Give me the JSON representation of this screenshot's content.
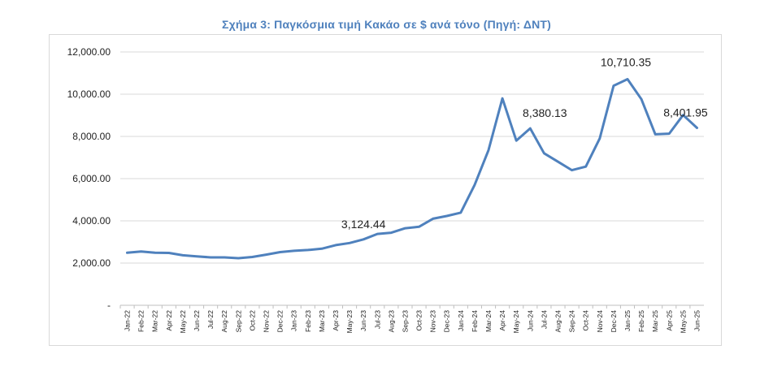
{
  "chart_data": {
    "type": "line",
    "title": "Σχήμα 3: Παγκόσμια τιμή Κακάο σε $ ανά τόνο (Πηγή: ΔΝΤ)",
    "xlabel": "",
    "ylabel": "",
    "ylim": [
      0,
      12000
    ],
    "yticks": [
      {
        "value": 0,
        "label": "-"
      },
      {
        "value": 2000,
        "label": "2,000.00"
      },
      {
        "value": 4000,
        "label": "4,000.00"
      },
      {
        "value": 6000,
        "label": "6,000.00"
      },
      {
        "value": 8000,
        "label": "8,000.00"
      },
      {
        "value": 10000,
        "label": "10,000.00"
      },
      {
        "value": 12000,
        "label": "12,000.00"
      }
    ],
    "grid": true,
    "line_color": "#4f81bd",
    "categories": [
      "Jan-22",
      "Feb-22",
      "Mar-22",
      "Apr-22",
      "May-22",
      "Jun-22",
      "Jul-22",
      "Aug-22",
      "Sep-22",
      "Oct-22",
      "Nov-22",
      "Dec-22",
      "Jan-23",
      "Feb-23",
      "Mar-23",
      "Apr-23",
      "May-23",
      "Jun-23",
      "Jul-23",
      "Aug-23",
      "Sep-23",
      "Oct-23",
      "Nov-23",
      "Dec-23",
      "Jan-24",
      "Feb-24",
      "Mar-24",
      "Apr-24",
      "May-24",
      "Jun-24",
      "Jul-24",
      "Aug-24",
      "Sep-24",
      "Oct-24",
      "Nov-24",
      "Dec-24",
      "Jan-25",
      "Feb-25",
      "Mar-25",
      "Apr-25",
      "May-25",
      "Jun-25"
    ],
    "series": [
      {
        "values": [
          2490,
          2550,
          2490,
          2480,
          2370,
          2320,
          2270,
          2270,
          2230,
          2290,
          2400,
          2520,
          2580,
          2620,
          2680,
          2850,
          2950,
          3124.44,
          3380,
          3440,
          3650,
          3720,
          4100,
          4230,
          4390,
          5700,
          7350,
          9800,
          7800,
          8380.13,
          7200,
          6800,
          6400,
          6570,
          7900,
          10400,
          10710.35,
          9760,
          8100,
          8130,
          9010,
          8401.95
        ]
      }
    ],
    "annotations": [
      {
        "index": 17,
        "label": "3,124.44"
      },
      {
        "index": 29,
        "label": "8,380.13"
      },
      {
        "index": 36,
        "label": "10,710.35"
      },
      {
        "index": 41,
        "label": "8,401.95"
      }
    ]
  }
}
